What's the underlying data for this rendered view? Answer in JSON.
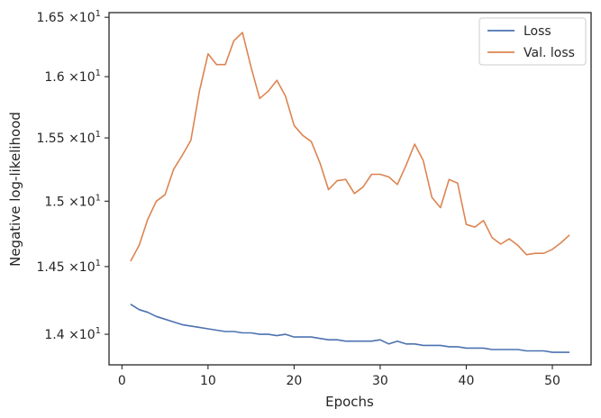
{
  "chart_data": {
    "type": "line",
    "xlabel": "Epochs",
    "ylabel": "Negative log-likelihood",
    "y_scale": "log",
    "xlim": [
      -1.5,
      54.5
    ],
    "ylim": [
      13.78,
      16.54
    ],
    "x_ticks": [
      0,
      10,
      20,
      30,
      40,
      50
    ],
    "x_tick_labels": [
      "0",
      "10",
      "20",
      "30",
      "40",
      "50"
    ],
    "y_ticks": [
      {
        "value": 14.0,
        "mantissa": "1.4",
        "exp": "1"
      },
      {
        "value": 14.5,
        "mantissa": "1.45",
        "exp": "1"
      },
      {
        "value": 15.0,
        "mantissa": "1.5",
        "exp": "1"
      },
      {
        "value": 15.5,
        "mantissa": "1.55",
        "exp": "1"
      },
      {
        "value": 16.0,
        "mantissa": "1.6",
        "exp": "1"
      },
      {
        "value": 16.5,
        "mantissa": "1.65",
        "exp": "1"
      }
    ],
    "y_tick_sep": "×10",
    "legend_position": "top-right",
    "grid": false,
    "x": [
      1,
      2,
      3,
      4,
      5,
      6,
      7,
      8,
      9,
      10,
      11,
      12,
      13,
      14,
      15,
      16,
      17,
      18,
      19,
      20,
      21,
      22,
      23,
      24,
      25,
      26,
      27,
      28,
      29,
      30,
      31,
      32,
      33,
      34,
      35,
      36,
      37,
      38,
      39,
      40,
      41,
      42,
      43,
      44,
      45,
      46,
      47,
      48,
      49,
      50,
      51,
      52
    ],
    "series": [
      {
        "name": "Loss",
        "color": "#4c72b0",
        "values": [
          14.22,
          14.18,
          14.16,
          14.13,
          14.11,
          14.09,
          14.07,
          14.06,
          14.05,
          14.04,
          14.03,
          14.02,
          14.02,
          14.01,
          14.01,
          14.0,
          14.0,
          13.99,
          14.0,
          13.98,
          13.98,
          13.98,
          13.97,
          13.96,
          13.96,
          13.95,
          13.95,
          13.95,
          13.95,
          13.96,
          13.93,
          13.95,
          13.93,
          13.93,
          13.92,
          13.92,
          13.92,
          13.91,
          13.91,
          13.9,
          13.9,
          13.9,
          13.89,
          13.89,
          13.89,
          13.89,
          13.88,
          13.88,
          13.88,
          13.87,
          13.87,
          13.87
        ]
      },
      {
        "name": "Val. loss",
        "color": "#dd8452",
        "values": [
          14.54,
          14.66,
          14.86,
          15.0,
          15.05,
          15.25,
          15.36,
          15.48,
          15.88,
          16.19,
          16.1,
          16.1,
          16.3,
          16.37,
          16.08,
          15.82,
          15.88,
          15.97,
          15.84,
          15.6,
          15.52,
          15.47,
          15.3,
          15.09,
          15.16,
          15.17,
          15.06,
          15.11,
          15.21,
          15.21,
          15.19,
          15.13,
          15.28,
          15.45,
          15.32,
          15.03,
          14.95,
          15.17,
          15.14,
          14.82,
          14.8,
          14.85,
          14.72,
          14.67,
          14.71,
          14.66,
          14.59,
          14.6,
          14.6,
          14.63,
          14.68,
          14.74
        ]
      }
    ]
  }
}
